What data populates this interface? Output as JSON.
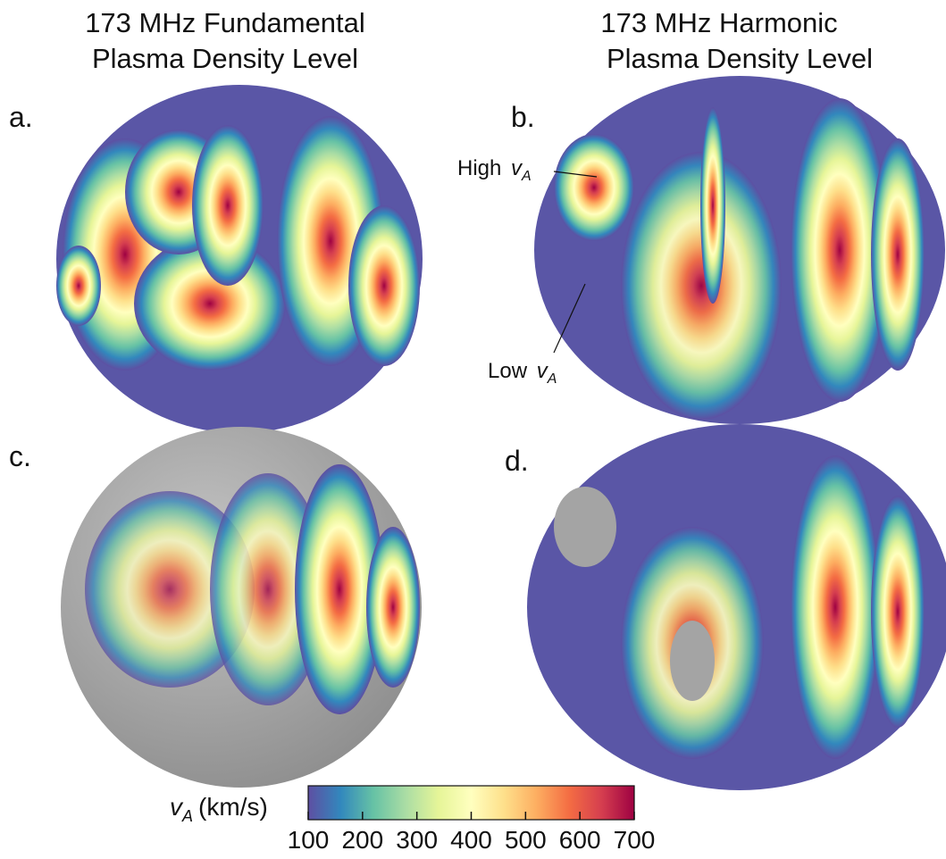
{
  "columns": [
    {
      "title_lines": [
        "173 MHz Fundamental",
        "Plasma Density Level"
      ]
    },
    {
      "title_lines": [
        "173 MHz Harmonic",
        "Plasma Density Level"
      ]
    }
  ],
  "panels": [
    {
      "label": "a."
    },
    {
      "label": "b."
    },
    {
      "label": "c."
    },
    {
      "label": "d."
    }
  ],
  "annotations": [
    {
      "text": "High",
      "symbol": "v",
      "subscript": "A"
    },
    {
      "text": "Low",
      "symbol": "v",
      "subscript": "A"
    }
  ],
  "colorbar": {
    "symbol": "v",
    "subscript": "A",
    "unit": "(km/s)",
    "lim": [
      100,
      700
    ],
    "ticks": [
      100,
      200,
      300,
      400,
      500,
      600,
      700
    ],
    "colors": [
      "#5e4fa2",
      "#3288bd",
      "#66c2a5",
      "#abdda4",
      "#e6f598",
      "#ffffbf",
      "#fee08b",
      "#fdae61",
      "#f46d43",
      "#d53e4f",
      "#9e0142"
    ]
  }
}
